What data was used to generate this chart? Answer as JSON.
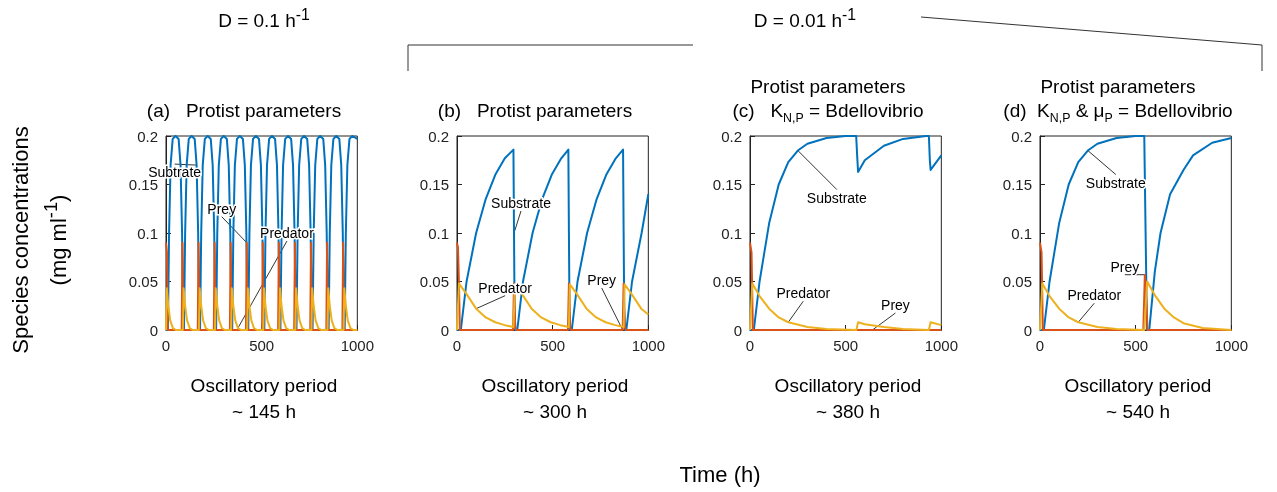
{
  "chart_data": [
    {
      "type": "line",
      "title": "(a)   Protist parameters",
      "ylabel": "Species concentrations\n(mg ml$^{-1}$)",
      "xlim": [
        0,
        1000
      ],
      "xticks": [
        0,
        500,
        1000
      ],
      "ylim": [
        0,
        0.2
      ],
      "yticks": [
        0,
        0.05,
        0.1,
        0.15,
        0.2
      ],
      "annotations": [
        "Oscillatory period\n~ 145 h",
        "D = 0.1 h$^{-1}$"
      ],
      "series": [
        {
          "name": "Subtrate",
          "color": "#0072bd",
          "x": [
            0,
            10,
            16,
            24,
            35,
            50,
            66,
            76,
            84,
            90,
            94,
            100,
            108,
            119,
            134,
            150,
            160,
            168,
            174,
            178,
            184,
            192,
            203,
            218,
            234,
            244,
            252,
            258,
            262,
            268,
            276,
            287,
            302,
            318,
            328,
            336,
            342,
            346,
            352,
            360,
            371,
            386,
            402,
            412,
            420,
            426,
            430,
            436,
            444,
            455,
            470,
            486,
            496,
            504,
            510,
            514,
            520,
            528,
            539,
            554,
            570,
            580,
            588,
            594,
            598,
            604,
            612,
            623,
            638,
            654,
            664,
            672,
            678,
            682,
            688,
            696,
            707,
            722,
            738,
            748,
            756,
            762,
            766,
            772,
            780,
            791,
            806,
            822,
            832,
            840,
            846,
            850,
            856,
            864,
            875,
            890,
            906,
            916,
            924,
            930,
            934,
            940,
            948,
            959,
            974,
            1000
          ],
          "values": [
            0,
            0,
            0.1,
            0.17,
            0.197,
            0.2,
            0.197,
            0.17,
            0.1,
            0.01,
            0,
            0.1,
            0.17,
            0.197,
            0.2,
            0.197,
            0.17,
            0.1,
            0.01,
            0,
            0.1,
            0.17,
            0.197,
            0.2,
            0.197,
            0.17,
            0.1,
            0.01,
            0,
            0.1,
            0.17,
            0.197,
            0.2,
            0.197,
            0.17,
            0.1,
            0.01,
            0,
            0.1,
            0.17,
            0.197,
            0.2,
            0.197,
            0.17,
            0.1,
            0.01,
            0,
            0.1,
            0.17,
            0.197,
            0.2,
            0.197,
            0.17,
            0.1,
            0.01,
            0,
            0.1,
            0.17,
            0.197,
            0.2,
            0.197,
            0.17,
            0.1,
            0.01,
            0,
            0.1,
            0.17,
            0.197,
            0.2,
            0.197,
            0.17,
            0.1,
            0.01,
            0,
            0.1,
            0.17,
            0.197,
            0.2,
            0.197,
            0.17,
            0.1,
            0.01,
            0,
            0.1,
            0.17,
            0.197,
            0.2,
            0.197,
            0.17,
            0.1,
            0.01,
            0,
            0.1,
            0.17,
            0.197,
            0.2,
            0.197,
            0.17,
            0.1,
            0.01,
            0,
            0.1,
            0.17,
            0.197,
            0.2,
            0.197
          ]
        },
        {
          "name": "Prey",
          "color": "#d95319",
          "x": [
            0,
            5,
            9,
            82,
            86,
            90,
            166,
            170,
            174,
            250,
            254,
            258,
            334,
            338,
            342,
            418,
            422,
            426,
            502,
            506,
            510,
            586,
            590,
            594,
            670,
            674,
            678,
            754,
            758,
            762,
            838,
            842,
            846,
            922,
            926,
            930,
            1000
          ],
          "values": [
            0.09,
            0.08,
            0,
            0,
            0.09,
            0,
            0,
            0.09,
            0,
            0,
            0.09,
            0,
            0,
            0.09,
            0,
            0,
            0.09,
            0,
            0,
            0.09,
            0,
            0,
            0.09,
            0,
            0,
            0.09,
            0,
            0,
            0.09,
            0,
            0,
            0.09,
            0,
            0,
            0.09,
            0,
            0
          ]
        },
        {
          "name": "Predator",
          "color": "#edb120",
          "x": [
            0,
            4,
            12,
            22,
            36,
            52,
            88,
            92,
            100,
            110,
            124,
            140,
            172,
            176,
            184,
            194,
            208,
            224,
            256,
            260,
            268,
            278,
            292,
            308,
            340,
            344,
            352,
            362,
            376,
            392,
            424,
            428,
            436,
            446,
            460,
            476,
            508,
            512,
            520,
            530,
            544,
            560,
            592,
            596,
            604,
            614,
            628,
            644,
            676,
            680,
            688,
            698,
            712,
            728,
            760,
            764,
            772,
            782,
            796,
            812,
            844,
            848,
            856,
            866,
            880,
            896,
            928,
            932,
            940,
            950,
            964,
            980,
            1000
          ],
          "values": [
            0,
            0.043,
            0.025,
            0.01,
            0.002,
            0,
            0,
            0.043,
            0.025,
            0.01,
            0.002,
            0,
            0,
            0.043,
            0.025,
            0.01,
            0.002,
            0,
            0,
            0.043,
            0.025,
            0.01,
            0.002,
            0,
            0,
            0.043,
            0.025,
            0.01,
            0.002,
            0,
            0,
            0.043,
            0.025,
            0.01,
            0.002,
            0,
            0,
            0.043,
            0.025,
            0.01,
            0.002,
            0,
            0,
            0.043,
            0.025,
            0.01,
            0.002,
            0,
            0,
            0.043,
            0.025,
            0.01,
            0.002,
            0,
            0,
            0.043,
            0.025,
            0.01,
            0.002,
            0,
            0,
            0.043,
            0.025,
            0.01,
            0.002,
            0,
            0,
            0.043,
            0.025,
            0.01,
            0.002,
            0,
            0
          ]
        }
      ]
    },
    {
      "type": "line",
      "title": "(b)   Protist parameters",
      "xlabel": "Time (h)",
      "xlim": [
        0,
        1000
      ],
      "xticks": [
        0,
        500,
        1000
      ],
      "ylim": [
        0,
        0.2
      ],
      "yticks": [
        0,
        0.05,
        0.1,
        0.15,
        0.2
      ],
      "annotations": [
        "Oscillatory period\n~ 300 h",
        "D = 0.01 h$^{-1}$"
      ],
      "series": [
        {
          "name": "Substrate",
          "color": "#0072bd",
          "x": [
            0,
            20,
            50,
            100,
            150,
            200,
            250,
            295,
            298,
            301,
            305,
            315,
            345,
            395,
            445,
            495,
            545,
            582,
            585,
            588,
            592,
            600,
            630,
            680,
            730,
            780,
            830,
            868,
            871,
            874,
            878,
            885,
            915,
            965,
            1000
          ],
          "values": [
            0,
            0,
            0.05,
            0.1,
            0.135,
            0.16,
            0.177,
            0.186,
            0.1,
            0.02,
            0,
            0,
            0.05,
            0.1,
            0.135,
            0.16,
            0.177,
            0.186,
            0.1,
            0.02,
            0,
            0,
            0.05,
            0.1,
            0.135,
            0.16,
            0.177,
            0.186,
            0.1,
            0.02,
            0,
            0,
            0.05,
            0.1,
            0.14
          ]
        },
        {
          "name": "Prey",
          "color": "#d95319",
          "x": [
            0,
            5,
            10,
            15,
            293,
            298,
            304,
            310,
            580,
            585,
            591,
            597,
            866,
            871,
            877,
            883,
            1000
          ],
          "values": [
            0.09,
            0.085,
            0.05,
            0,
            0,
            0.048,
            0.003,
            0,
            0,
            0.048,
            0.003,
            0,
            0,
            0.048,
            0.003,
            0,
            0
          ]
        },
        {
          "name": "Predator",
          "color": "#edb120",
          "x": [
            0,
            10,
            50,
            100,
            150,
            200,
            250,
            295,
            303,
            340,
            390,
            440,
            490,
            540,
            585,
            590,
            627,
            677,
            727,
            777,
            827,
            871,
            876,
            913,
            963,
            1000
          ],
          "values": [
            0,
            0.048,
            0.037,
            0.022,
            0.013,
            0.008,
            0.005,
            0.003,
            0.047,
            0.037,
            0.022,
            0.013,
            0.008,
            0.005,
            0.003,
            0.047,
            0.037,
            0.022,
            0.013,
            0.008,
            0.005,
            0.003,
            0.047,
            0.037,
            0.022,
            0.016
          ]
        }
      ]
    },
    {
      "type": "line",
      "title": "Protist parameters",
      "subtitle": "(c)   K$_{N,P}$ = Bdellovibrio",
      "xlim": [
        0,
        1000
      ],
      "xticks": [
        0,
        500,
        1000
      ],
      "ylim": [
        0,
        0.2
      ],
      "yticks": [
        0,
        0.05,
        0.1,
        0.15,
        0.2
      ],
      "annotations": [
        "Oscillatory period\n~ 380 h"
      ],
      "series": [
        {
          "name": "Substrate",
          "color": "#0072bd",
          "x": [
            0,
            20,
            50,
            100,
            150,
            200,
            250,
            300,
            400,
            500,
            555,
            560,
            565,
            600,
            700,
            800,
            920,
            935,
            940,
            944,
            1000
          ],
          "values": [
            0,
            0,
            0.05,
            0.11,
            0.15,
            0.173,
            0.185,
            0.192,
            0.198,
            0.2,
            0.2,
            0.18,
            0.163,
            0.175,
            0.19,
            0.197,
            0.2,
            0.2,
            0.175,
            0.165,
            0.18
          ]
        },
        {
          "name": "Prey",
          "color": "#d95319",
          "x": [
            0,
            8,
            15,
            640,
            1000
          ],
          "values": [
            0.09,
            0.08,
            0,
            0,
            0
          ]
        },
        {
          "name": "Predator",
          "color": "#edb120",
          "x": [
            0,
            12,
            50,
            100,
            150,
            200,
            300,
            400,
            556,
            565,
            600,
            700,
            800,
            935,
            944,
            1000
          ],
          "values": [
            0,
            0.048,
            0.035,
            0.022,
            0.013,
            0.008,
            0.003,
            0.001,
            0,
            0.008,
            0.006,
            0.003,
            0.001,
            0,
            0.008,
            0.005
          ]
        }
      ]
    },
    {
      "type": "line",
      "title": "Protist parameters",
      "subtitle": "(d)  K$_{N,P}$ & μ$_{P}$ = Bdellovibrio",
      "xlim": [
        0,
        1000
      ],
      "xticks": [
        0,
        500,
        1000
      ],
      "ylim": [
        0,
        0.2
      ],
      "yticks": [
        0,
        0.05,
        0.1,
        0.15,
        0.2
      ],
      "annotations": [
        "Oscillatory period\n~ 540 h"
      ],
      "series": [
        {
          "name": "Substrate",
          "color": "#0072bd",
          "x": [
            0,
            20,
            50,
            100,
            150,
            200,
            250,
            300,
            400,
            500,
            545,
            552,
            559,
            571,
            600,
            630,
            680,
            750,
            800,
            900,
            1000
          ],
          "values": [
            0,
            0,
            0.05,
            0.11,
            0.15,
            0.173,
            0.185,
            0.192,
            0.198,
            0.2,
            0.2,
            0.1,
            0,
            0,
            0.06,
            0.1,
            0.14,
            0.165,
            0.18,
            0.193,
            0.198
          ]
        },
        {
          "name": "Prey",
          "color": "#d95319",
          "x": [
            0,
            8,
            15,
            540,
            548,
            556,
            562,
            1000
          ],
          "values": [
            0.09,
            0.08,
            0,
            0,
            0.057,
            0.03,
            0,
            0
          ]
        },
        {
          "name": "Predator",
          "color": "#edb120",
          "x": [
            0,
            12,
            50,
            100,
            150,
            200,
            300,
            400,
            545,
            560,
            600,
            650,
            700,
            750,
            850,
            1000
          ],
          "values": [
            0,
            0.048,
            0.035,
            0.022,
            0.013,
            0.008,
            0.003,
            0.001,
            0,
            0.05,
            0.036,
            0.022,
            0.013,
            0.007,
            0.002,
            0
          ]
        }
      ]
    }
  ]
}
